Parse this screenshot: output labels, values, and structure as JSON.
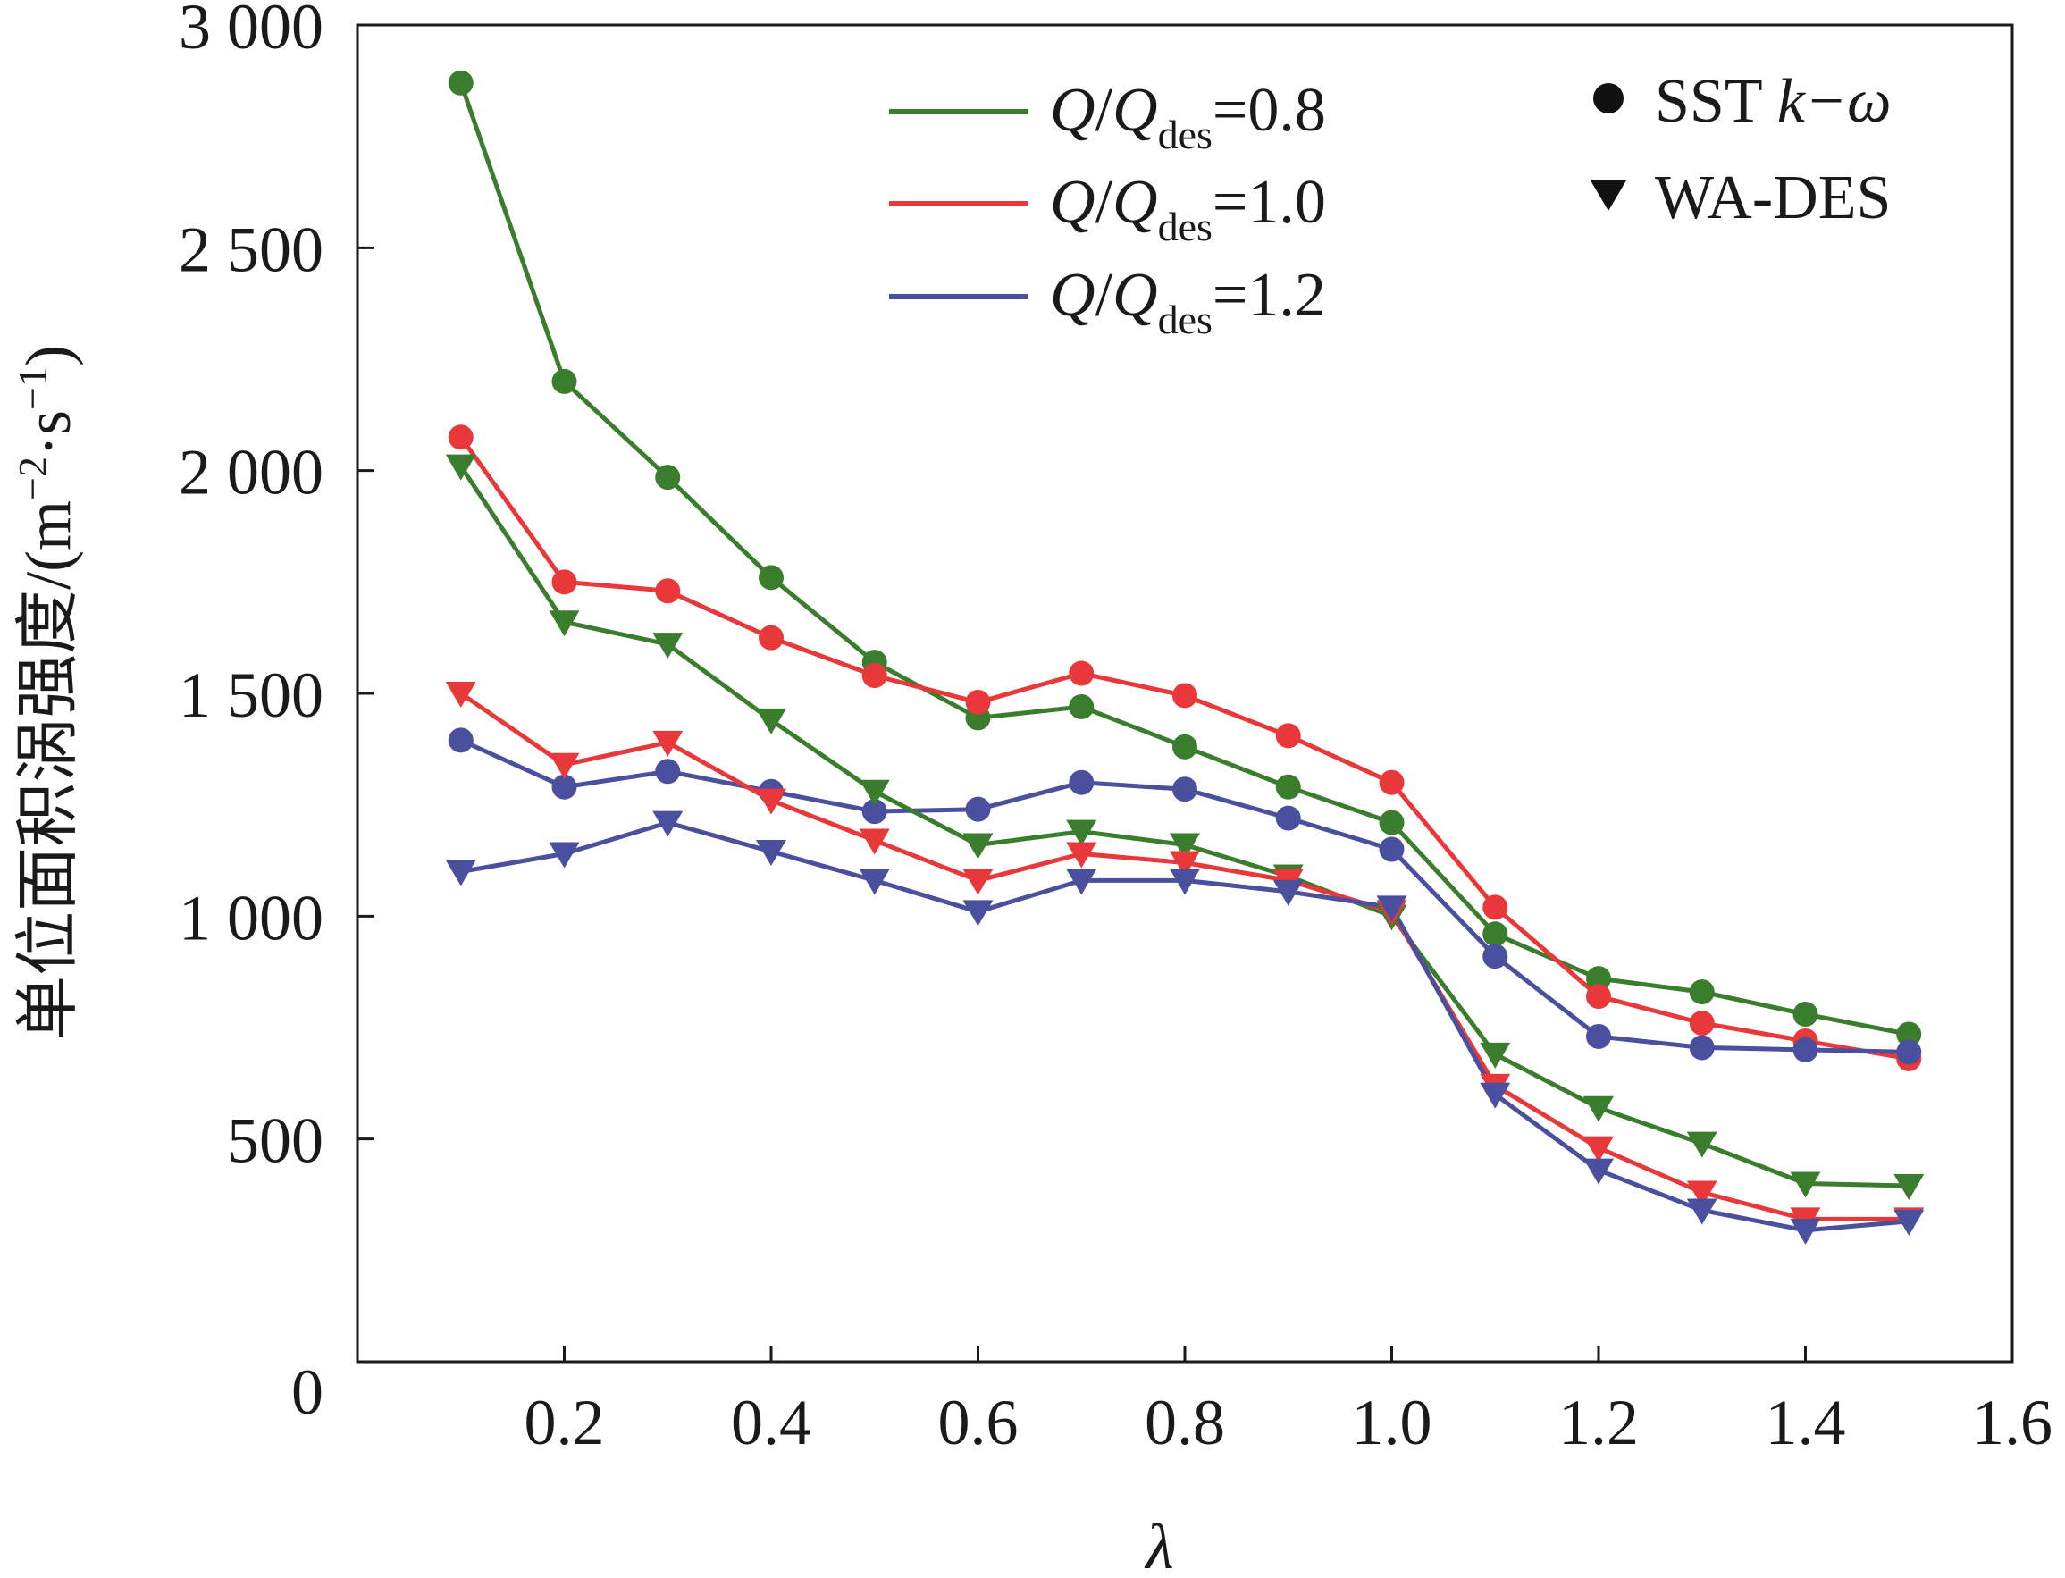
{
  "chart_data": {
    "type": "line",
    "title": "",
    "xlabel": "λ",
    "ylabel": "单位面积涡强度/(m⁻²·s⁻¹)",
    "ylabel_parts": {
      "prefix": "单位面积涡强度/(m",
      "exp1": "−2",
      "middle": "·s",
      "exp2": "−1",
      "suffix": ")"
    },
    "xlim": [
      0,
      1.6
    ],
    "ylim": [
      0,
      3000
    ],
    "x_ticks": [
      0.2,
      0.4,
      0.6,
      0.8,
      1.0,
      1.2,
      1.4,
      1.6
    ],
    "x_tick_labels": [
      "0.2",
      "0.4",
      "0.6",
      "0.8",
      "1.0",
      "1.2",
      "1.4",
      "1.6"
    ],
    "y_ticks": [
      0,
      500,
      1000,
      1500,
      2000,
      2500,
      3000
    ],
    "y_tick_labels": [
      "0",
      "500",
      "1 000",
      "1 500",
      "2 000",
      "2 500",
      "3 000"
    ],
    "grid": false,
    "x": [
      0.1,
      0.2,
      0.3,
      0.4,
      0.5,
      0.6,
      0.7,
      0.8,
      0.9,
      1.0,
      1.1,
      1.2,
      1.3,
      1.4,
      1.5
    ],
    "legend_position": "top-right",
    "legend": {
      "flow_entries": [
        {
          "q": "Q",
          "slash": "/",
          "q2": "Q",
          "sub": "des",
          "eq": "=0.8",
          "color": "#3a7d2c"
        },
        {
          "q": "Q",
          "slash": "/",
          "q2": "Q",
          "sub": "des",
          "eq": "=1.0",
          "color": "#e8383a"
        },
        {
          "q": "Q",
          "slash": "/",
          "q2": "Q",
          "sub": "des",
          "eq": "=1.2",
          "color": "#4a4f9e"
        }
      ],
      "model_entries": [
        {
          "label": "SST ",
          "label_italic": "k−ω",
          "marker": "circle"
        },
        {
          "label": "WA-DES",
          "label_italic": "",
          "marker": "triangle-down"
        }
      ]
    },
    "series": [
      {
        "name": "Q/Qdes=0.8 SST k−ω",
        "flow": "0.8",
        "model": "SST k−ω",
        "marker": "circle",
        "color": "#3a7d2c",
        "values": [
          2870,
          2200,
          1985,
          1760,
          1570,
          1445,
          1470,
          1380,
          1290,
          1210,
          960,
          860,
          830,
          780,
          735
        ]
      },
      {
        "name": "Q/Qdes=1.0 SST k−ω",
        "flow": "1.0",
        "model": "SST k−ω",
        "marker": "circle",
        "color": "#e8383a",
        "values": [
          2075,
          1750,
          1730,
          1625,
          1540,
          1480,
          1545,
          1495,
          1405,
          1300,
          1020,
          820,
          760,
          720,
          680
        ]
      },
      {
        "name": "Q/Qdes=1.2 SST k−ω",
        "flow": "1.2",
        "model": "SST k−ω",
        "marker": "circle",
        "color": "#4a4f9e",
        "values": [
          1395,
          1290,
          1325,
          1280,
          1235,
          1240,
          1300,
          1285,
          1220,
          1150,
          910,
          730,
          705,
          700,
          695
        ]
      },
      {
        "name": "Q/Qdes=0.8 WA-DES",
        "flow": "0.8",
        "model": "WA-DES",
        "marker": "triangle-down",
        "color": "#3a7d2c",
        "values": [
          2010,
          1660,
          1610,
          1440,
          1280,
          1160,
          1190,
          1160,
          1090,
          1000,
          690,
          570,
          490,
          400,
          395
        ]
      },
      {
        "name": "Q/Qdes=1.0 WA-DES",
        "flow": "1.0",
        "model": "WA-DES",
        "marker": "triangle-down",
        "color": "#e8383a",
        "values": [
          1500,
          1340,
          1390,
          1260,
          1170,
          1080,
          1140,
          1120,
          1080,
          1010,
          620,
          480,
          380,
          320,
          320
        ]
      },
      {
        "name": "Q/Qdes=1.2 WA-DES",
        "flow": "1.2",
        "model": "WA-DES",
        "marker": "triangle-down",
        "color": "#4a4f9e",
        "values": [
          1100,
          1140,
          1210,
          1145,
          1080,
          1010,
          1080,
          1080,
          1055,
          1020,
          600,
          430,
          340,
          295,
          315
        ]
      }
    ]
  }
}
